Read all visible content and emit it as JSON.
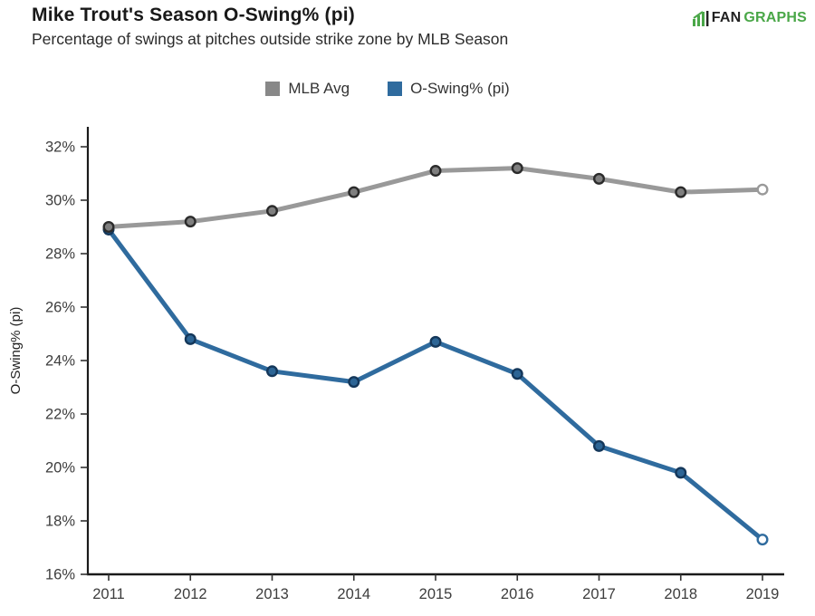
{
  "header": {
    "title": "Mike Trout's Season O-Swing% (pi)",
    "subtitle": "Percentage of swings at pitches outside strike zone by MLB Season"
  },
  "logo": {
    "fan": "FAN",
    "graphs": "GRAPHS",
    "green": "#4aa748",
    "dark": "#222222"
  },
  "legend": [
    {
      "label": "MLB Avg",
      "color": "#888888"
    },
    {
      "label": "O-Swing% (pi)",
      "color": "#2f6b9e"
    }
  ],
  "chart_data": {
    "type": "line",
    "title": "Mike Trout's Season O-Swing% (pi)",
    "subtitle": "Percentage of swings at pitches outside strike zone by MLB Season",
    "xlabel": "",
    "ylabel": "O-Swing% (pi)",
    "categories": [
      "2011",
      "2012",
      "2013",
      "2014",
      "2015",
      "2016",
      "2017",
      "2018",
      "2019"
    ],
    "series": [
      {
        "name": "MLB Avg",
        "color": "#999999",
        "marker_fill": "#7f7f7f",
        "marker_edge": "#2b2b2b",
        "last_point_open": true,
        "values": [
          29.0,
          29.2,
          29.6,
          30.3,
          31.1,
          31.2,
          30.8,
          30.3,
          30.4
        ]
      },
      {
        "name": "O-Swing% (pi)",
        "color": "#2f6b9e",
        "marker_fill": "#2d6595",
        "marker_edge": "#14375a",
        "last_point_open": true,
        "values": [
          28.9,
          24.8,
          23.6,
          23.2,
          24.7,
          23.5,
          20.8,
          19.8,
          17.3
        ]
      }
    ],
    "ylim": [
      16,
      32.7
    ],
    "yticks": [
      16,
      18,
      20,
      22,
      24,
      26,
      28,
      30,
      32
    ],
    "ytick_suffix": "%",
    "grid": false,
    "legend_position": "top-center",
    "axis_color": "#1a1a1a",
    "tick_color": "#333333"
  }
}
